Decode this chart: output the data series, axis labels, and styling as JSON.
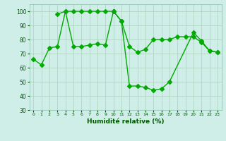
{
  "xlabel": "Humidité relative (%)",
  "xlim": [
    -0.5,
    23.5
  ],
  "ylim": [
    30,
    105
  ],
  "yticks": [
    30,
    40,
    50,
    60,
    70,
    80,
    90,
    100
  ],
  "xticks": [
    0,
    1,
    2,
    3,
    4,
    5,
    6,
    7,
    8,
    9,
    10,
    11,
    12,
    13,
    14,
    15,
    16,
    17,
    18,
    19,
    20,
    21,
    22,
    23
  ],
  "background_color": "#d0eee8",
  "grid_color": "#aacfbb",
  "line_color": "#00aa00",
  "line1_y": [
    66,
    62,
    74,
    75,
    100,
    75,
    75,
    76,
    77,
    76,
    100,
    93,
    75,
    71,
    73,
    80,
    80,
    80,
    82,
    82,
    82,
    78,
    72,
    71
  ],
  "line2_y": [
    null,
    null,
    null,
    98,
    100,
    100,
    100,
    100,
    100,
    100,
    100,
    null,
    null,
    null,
    null,
    null,
    null,
    null,
    null,
    null,
    null,
    null,
    null,
    null
  ],
  "line3_y": [
    null,
    null,
    null,
    null,
    null,
    null,
    null,
    null,
    null,
    null,
    100,
    93,
    47,
    47,
    46,
    44,
    45,
    50,
    null,
    null,
    85,
    79,
    72,
    71
  ]
}
